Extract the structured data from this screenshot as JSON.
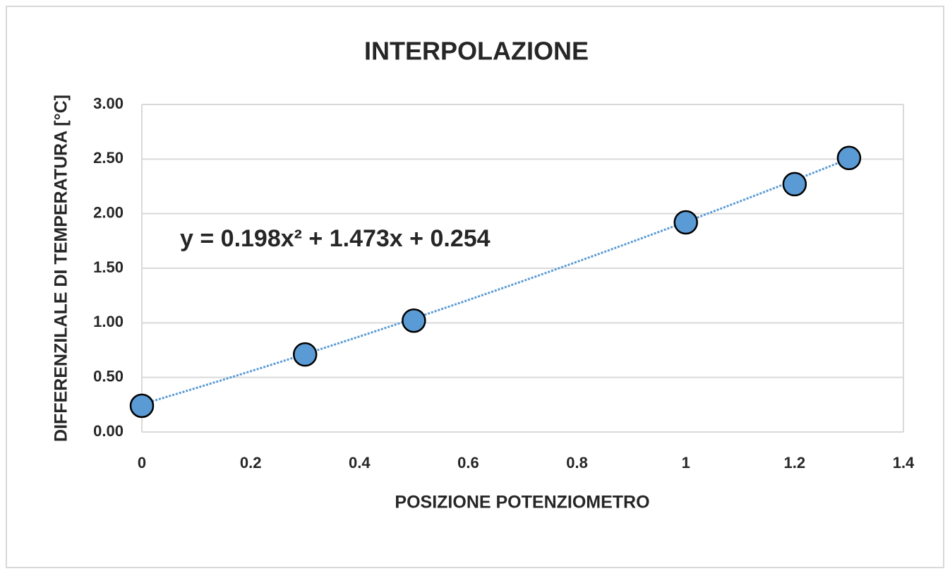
{
  "chart_data": {
    "type": "scatter",
    "title": "INTERPOLAZIONE",
    "x_label": "POSIZIONE POTENZIOMETRO",
    "y_label": "DIFFERENZILALE DI TEMPERATURA [°C]",
    "x": [
      0,
      0.3,
      0.5,
      1,
      1.2,
      1.3
    ],
    "values": [
      0.24,
      0.71,
      1.02,
      1.92,
      2.27,
      2.51
    ],
    "color": "#5b9bd5",
    "xlim": [
      0,
      1.4
    ],
    "xticks": [
      0,
      0.2,
      0.4,
      0.6,
      0.8,
      1,
      1.2,
      1.4
    ],
    "ylim": [
      0,
      3
    ],
    "yticks": [
      {
        "value": 0,
        "label": "0.00"
      },
      {
        "value": 0.5,
        "label": "0.50"
      },
      {
        "value": 1,
        "label": "1.00"
      },
      {
        "value": 1.5,
        "label": "1.50"
      },
      {
        "value": 2,
        "label": "2.00"
      },
      {
        "value": 2.5,
        "label": "2.50"
      },
      {
        "value": 3,
        "label": "3.00"
      }
    ],
    "grid": true,
    "trendline": {
      "type": "polynomial",
      "coefficients": [
        0.198,
        1.473,
        0.254
      ],
      "equation": "y = 0.198x² + 1.473x + 0.254"
    }
  }
}
